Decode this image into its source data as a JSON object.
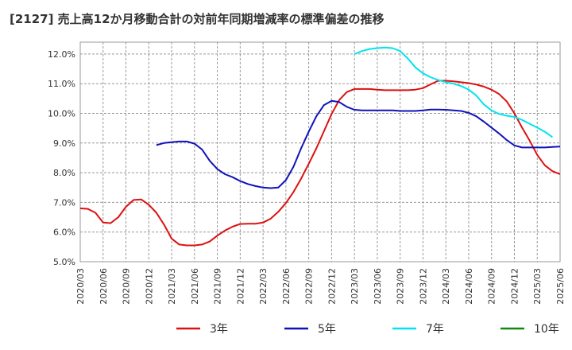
{
  "chart_data": {
    "type": "line",
    "title": "[2127]  売上高12か月移動合計の対前年同期増減率の標準偏差の推移",
    "xlabel": "",
    "ylabel": "",
    "ylim": [
      5.0,
      12.4
    ],
    "y_ticks": [
      "5.0%",
      "6.0%",
      "7.0%",
      "8.0%",
      "9.0%",
      "10.0%",
      "11.0%",
      "12.0%"
    ],
    "y_tick_values": [
      5,
      6,
      7,
      8,
      9,
      10,
      11,
      12
    ],
    "x_ticks": [
      "2020/03",
      "2020/06",
      "2020/09",
      "2020/12",
      "2021/03",
      "2021/06",
      "2021/09",
      "2021/12",
      "2022/03",
      "2022/06",
      "2022/09",
      "2022/12",
      "2023/03",
      "2023/06",
      "2023/09",
      "2023/12",
      "2024/03",
      "2024/06",
      "2024/09",
      "2024/12",
      "2025/03",
      "2025/06"
    ],
    "x_start": "2020/03",
    "months_total": 63,
    "grid": true,
    "legend_position": "bottom",
    "series": [
      {
        "name": "3年",
        "color": "#dd1111",
        "start": "2020/03",
        "values": [
          6.8,
          6.78,
          6.65,
          6.32,
          6.3,
          6.5,
          6.85,
          7.08,
          7.1,
          6.92,
          6.65,
          6.25,
          5.78,
          5.58,
          5.55,
          5.55,
          5.58,
          5.68,
          5.88,
          6.05,
          6.18,
          6.27,
          6.28,
          6.28,
          6.32,
          6.45,
          6.68,
          6.98,
          7.35,
          7.8,
          8.3,
          8.82,
          9.4,
          9.98,
          10.45,
          10.72,
          10.82,
          10.82,
          10.82,
          10.8,
          10.78,
          10.78,
          10.78,
          10.78,
          10.8,
          10.85,
          10.98,
          11.1,
          11.1,
          11.08,
          11.05,
          11.02,
          10.97,
          10.9,
          10.8,
          10.65,
          10.4,
          10.0,
          9.52,
          9.08,
          8.6,
          8.25,
          8.05,
          7.95
        ]
      },
      {
        "name": "5年",
        "color": "#1111bb",
        "start": "2021/01",
        "values": [
          8.93,
          9.0,
          9.03,
          9.05,
          9.05,
          8.98,
          8.78,
          8.4,
          8.12,
          7.95,
          7.85,
          7.72,
          7.62,
          7.55,
          7.5,
          7.48,
          7.5,
          7.75,
          8.2,
          8.82,
          9.38,
          9.9,
          10.28,
          10.42,
          10.38,
          10.22,
          10.12,
          10.1,
          10.1,
          10.1,
          10.1,
          10.1,
          10.08,
          10.08,
          10.08,
          10.1,
          10.13,
          10.13,
          10.12,
          10.1,
          10.08,
          10.02,
          9.9,
          9.72,
          9.52,
          9.32,
          9.1,
          8.92,
          8.85,
          8.85,
          8.85,
          8.85,
          8.87,
          8.88
        ]
      },
      {
        "name": "7年",
        "color": "#00e5ee",
        "start": "2023/03",
        "values": [
          12.0,
          12.1,
          12.17,
          12.2,
          12.22,
          12.2,
          12.1,
          11.85,
          11.55,
          11.35,
          11.22,
          11.12,
          11.05,
          11.0,
          10.92,
          10.8,
          10.6,
          10.3,
          10.1,
          9.98,
          9.92,
          9.88,
          9.78,
          9.65,
          9.52,
          9.38,
          9.2
        ]
      },
      {
        "name": "10年",
        "color": "#118811",
        "start": "2025/03",
        "values": []
      }
    ]
  }
}
